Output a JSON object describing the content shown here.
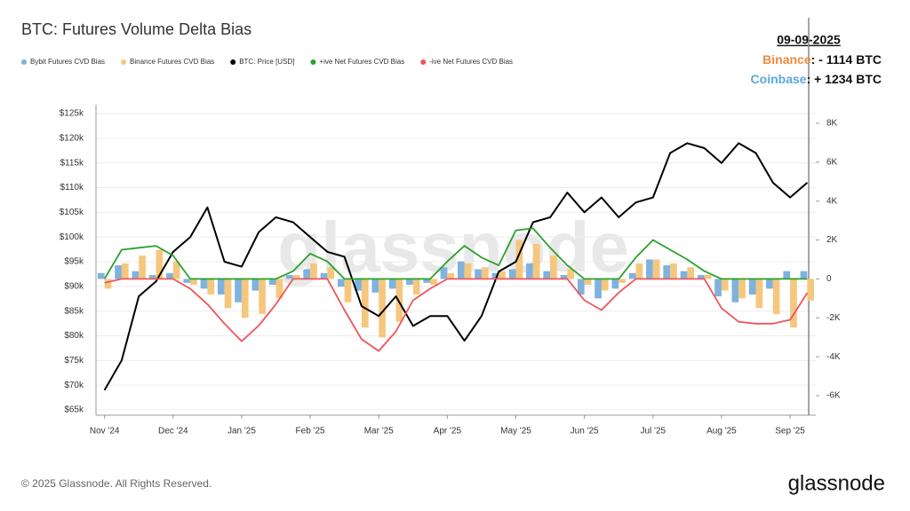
{
  "chart_data": {
    "type": "combo",
    "title": "BTC: Futures Volume Delta Bias",
    "categories": [
      "Nov '24",
      null,
      null,
      null,
      "Dec '24",
      null,
      null,
      null,
      "Jan '25",
      null,
      null,
      null,
      "Feb '25",
      null,
      null,
      null,
      "Mar '25",
      null,
      null,
      null,
      "Apr '25",
      null,
      null,
      null,
      "May '25",
      null,
      null,
      null,
      "Jun '25",
      null,
      null,
      null,
      "Jul '25",
      null,
      null,
      null,
      "Aug '25",
      null,
      null,
      null,
      "Sep '25",
      null
    ],
    "series": [
      {
        "name": "Bybit Futures CVD Bias",
        "type": "bar",
        "axis": "y2",
        "color": "#7fb2de",
        "values": [
          300,
          700,
          400,
          200,
          300,
          -200,
          -500,
          -800,
          -1200,
          -600,
          -300,
          200,
          500,
          300,
          -400,
          -600,
          -700,
          -500,
          -300,
          -200,
          600,
          900,
          500,
          300,
          500,
          800,
          400,
          200,
          -800,
          -1000,
          -500,
          300,
          1000,
          700,
          400,
          200,
          -900,
          -1200,
          -800,
          -500,
          400,
          400
        ]
      },
      {
        "name": "Binance Futures CVD Bias",
        "type": "bar",
        "axis": "y2",
        "color": "#f5c77e",
        "values": [
          -500,
          800,
          1200,
          1500,
          900,
          -300,
          -800,
          -1500,
          -2000,
          -1800,
          -1000,
          200,
          800,
          600,
          -1200,
          -2500,
          -3000,
          -2200,
          -800,
          -300,
          300,
          800,
          600,
          400,
          2000,
          1800,
          1200,
          500,
          -300,
          -600,
          -200,
          800,
          1000,
          800,
          600,
          200,
          -600,
          -1000,
          -1500,
          -1800,
          -2500,
          -1114
        ]
      },
      {
        "name": "BTC: Price [USD]",
        "type": "line",
        "axis": "y",
        "color": "#000000",
        "values": [
          69000,
          75000,
          88000,
          91000,
          97000,
          100000,
          106000,
          95000,
          94000,
          101000,
          104000,
          103000,
          100000,
          97000,
          96000,
          86000,
          84000,
          88000,
          82000,
          84000,
          84000,
          79000,
          84000,
          93000,
          95000,
          103000,
          104000,
          109000,
          105000,
          108000,
          104000,
          107000,
          108000,
          117000,
          119000,
          118000,
          115000,
          119000,
          117000,
          111000,
          108000,
          111000
        ]
      },
      {
        "name": "+ive Net Futures CVD Bias",
        "type": "line",
        "axis": "y2",
        "color": "#2ca02c",
        "values": [
          0,
          1500,
          1600,
          1700,
          1200,
          0,
          0,
          0,
          0,
          0,
          0,
          400,
          1300,
          900,
          0,
          0,
          0,
          0,
          0,
          0,
          900,
          1700,
          1100,
          700,
          2500,
          2600,
          1600,
          700,
          0,
          0,
          0,
          1100,
          2000,
          1500,
          1000,
          400,
          0,
          0,
          0,
          0,
          0,
          0
        ]
      },
      {
        "name": "-ive Net Futures CVD Bias",
        "type": "line",
        "axis": "y2",
        "color": "#f0545a",
        "values": [
          -200,
          0,
          0,
          0,
          0,
          -500,
          -1300,
          -2300,
          -3200,
          -2400,
          -1300,
          0,
          0,
          0,
          -1600,
          -3100,
          -3700,
          -2700,
          -1100,
          -500,
          0,
          0,
          0,
          0,
          0,
          0,
          0,
          0,
          -1100,
          -1600,
          -700,
          0,
          0,
          0,
          0,
          0,
          -1500,
          -2200,
          -2300,
          -2300,
          -2100,
          -714
        ]
      }
    ],
    "ylim": [
      65000,
      125000
    ],
    "yticks": [
      {
        "value": 65000,
        "label": "$65k"
      },
      {
        "value": 70000,
        "label": "$70k"
      },
      {
        "value": 75000,
        "label": "$75k"
      },
      {
        "value": 80000,
        "label": "$80k"
      },
      {
        "value": 85000,
        "label": "$85k"
      },
      {
        "value": 90000,
        "label": "$90k"
      },
      {
        "value": 95000,
        "label": "$95k"
      },
      {
        "value": 100000,
        "label": "$100k"
      },
      {
        "value": 105000,
        "label": "$105k"
      },
      {
        "value": 110000,
        "label": "$110k"
      },
      {
        "value": 115000,
        "label": "$115k"
      },
      {
        "value": 120000,
        "label": "$120k"
      },
      {
        "value": 125000,
        "label": "$125k"
      }
    ],
    "y2lim": [
      -6730,
      8500
    ],
    "y2ticks": [
      {
        "value": -6000,
        "label": "-6K"
      },
      {
        "value": -4000,
        "label": "-4K"
      },
      {
        "value": -2000,
        "label": "-2K"
      },
      0,
      {
        "value": 2000,
        "label": "2K"
      },
      {
        "value": 4000,
        "label": "4K"
      },
      {
        "value": 6000,
        "label": "6K"
      },
      {
        "value": 8000,
        "label": "8K"
      }
    ],
    "grid": true,
    "annotation": {
      "date": "09-09-2025",
      "lines": [
        {
          "label": "Binance",
          "color": "#f0883e",
          "text": ": - 1114 BTC"
        },
        {
          "label": "Coinbase",
          "color": "#5aa8e0",
          "text": ": + 1234 BTC"
        }
      ]
    },
    "watermark": "glassnode",
    "source": "© 2025 Glassnode. All Rights Reserved.",
    "logo": "glassnode"
  }
}
